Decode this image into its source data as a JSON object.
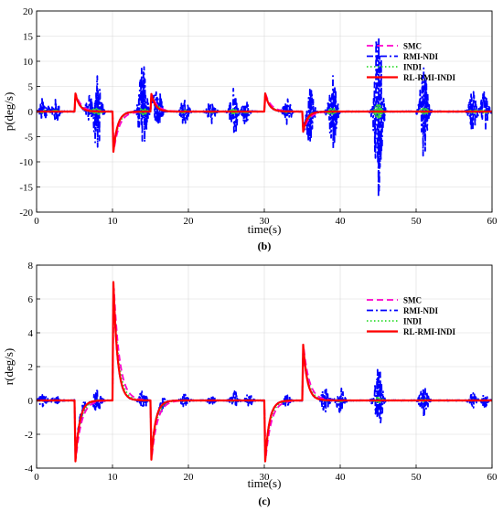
{
  "chart_data": [
    {
      "type": "line",
      "caption": "(b)",
      "xlabel": "time(s)",
      "ylabel": "p(deg/s)",
      "xlim": [
        0,
        60
      ],
      "ylim": [
        -20,
        20
      ],
      "xticks": [
        0,
        10,
        20,
        30,
        40,
        50,
        60
      ],
      "yticks": [
        -20,
        -15,
        -10,
        -5,
        0,
        5,
        10,
        15,
        20
      ],
      "grid": true,
      "legend_position": "top-right",
      "events": [
        {
          "t": 5,
          "amp": 3.6
        },
        {
          "t": 10,
          "amp": -8.0
        },
        {
          "t": 15,
          "amp": 3.5
        },
        {
          "t": 30,
          "amp": 3.6
        },
        {
          "t": 35,
          "amp": -4.0
        }
      ],
      "oscillation_bursts": [
        {
          "t": 1.0,
          "amp": 3.5
        },
        {
          "t": 2.5,
          "amp": 2.5
        },
        {
          "t": 7.0,
          "amp": 3.0
        },
        {
          "t": 8.0,
          "amp": 8.0
        },
        {
          "t": 14.0,
          "amp": 10.0
        },
        {
          "t": 16.0,
          "amp": 5.0
        },
        {
          "t": 19.5,
          "amp": 3.0
        },
        {
          "t": 23.0,
          "amp": 2.5
        },
        {
          "t": 26.0,
          "amp": 5.0
        },
        {
          "t": 27.5,
          "amp": 2.5
        },
        {
          "t": 33.0,
          "amp": 3.0
        },
        {
          "t": 36.0,
          "amp": 5.5
        },
        {
          "t": 39.0,
          "amp": 8.0
        },
        {
          "t": 45.0,
          "amp": 18.0
        },
        {
          "t": 51.0,
          "amp": 9.0
        },
        {
          "t": 57.5,
          "amp": 4.5
        },
        {
          "t": 59.0,
          "amp": 4.0
        }
      ],
      "series": [
        {
          "name": "SMC",
          "color": "#ff00cc",
          "dash": "dash",
          "role": "smooth"
        },
        {
          "name": "RMI-NDI",
          "color": "#0000ff",
          "dash": "dashdot",
          "role": "oscillating"
        },
        {
          "name": "INDI",
          "color": "#33dd33",
          "dash": "dot",
          "role": "smooth"
        },
        {
          "name": "RL-RMI-INDI",
          "color": "#ff0000",
          "dash": "solid",
          "role": "smooth"
        }
      ]
    },
    {
      "type": "line",
      "caption": "(c)",
      "xlabel": "time(s)",
      "ylabel": "r(deg/s)",
      "xlim": [
        0,
        60
      ],
      "ylim": [
        -4,
        8
      ],
      "xticks": [
        0,
        10,
        20,
        30,
        40,
        50,
        60
      ],
      "yticks": [
        -4,
        -2,
        0,
        2,
        4,
        6,
        8
      ],
      "grid": true,
      "legend_position": "top-right",
      "events": [
        {
          "t": 5,
          "amp": -3.6
        },
        {
          "t": 10,
          "amp": 7.0
        },
        {
          "t": 15,
          "amp": -3.5
        },
        {
          "t": 30,
          "amp": -3.6
        },
        {
          "t": 35,
          "amp": 3.3
        }
      ],
      "oscillation_bursts": [
        {
          "t": 0.8,
          "amp": 0.4
        },
        {
          "t": 2.5,
          "amp": 0.3
        },
        {
          "t": 6.0,
          "amp": 0.5
        },
        {
          "t": 8.0,
          "amp": 0.8
        },
        {
          "t": 14.0,
          "amp": 0.6
        },
        {
          "t": 16.5,
          "amp": 0.4
        },
        {
          "t": 19.5,
          "amp": 0.4
        },
        {
          "t": 23.0,
          "amp": 0.3
        },
        {
          "t": 26.0,
          "amp": 0.6
        },
        {
          "t": 28.0,
          "amp": 0.4
        },
        {
          "t": 33.0,
          "amp": 0.4
        },
        {
          "t": 38.0,
          "amp": 0.8
        },
        {
          "t": 40.0,
          "amp": 0.8
        },
        {
          "t": 45.0,
          "amp": 2.2
        },
        {
          "t": 51.0,
          "amp": 1.0
        },
        {
          "t": 57.5,
          "amp": 0.5
        },
        {
          "t": 59.0,
          "amp": 0.4
        }
      ],
      "series": [
        {
          "name": "SMC",
          "color": "#ff00cc",
          "dash": "dash",
          "role": "smooth"
        },
        {
          "name": "RMI-NDI",
          "color": "#0000ff",
          "dash": "dashdot",
          "role": "oscillating"
        },
        {
          "name": "INDI",
          "color": "#33dd33",
          "dash": "dot",
          "role": "smooth"
        },
        {
          "name": "RL-RMI-INDI",
          "color": "#ff0000",
          "dash": "solid",
          "role": "smooth"
        }
      ]
    }
  ]
}
